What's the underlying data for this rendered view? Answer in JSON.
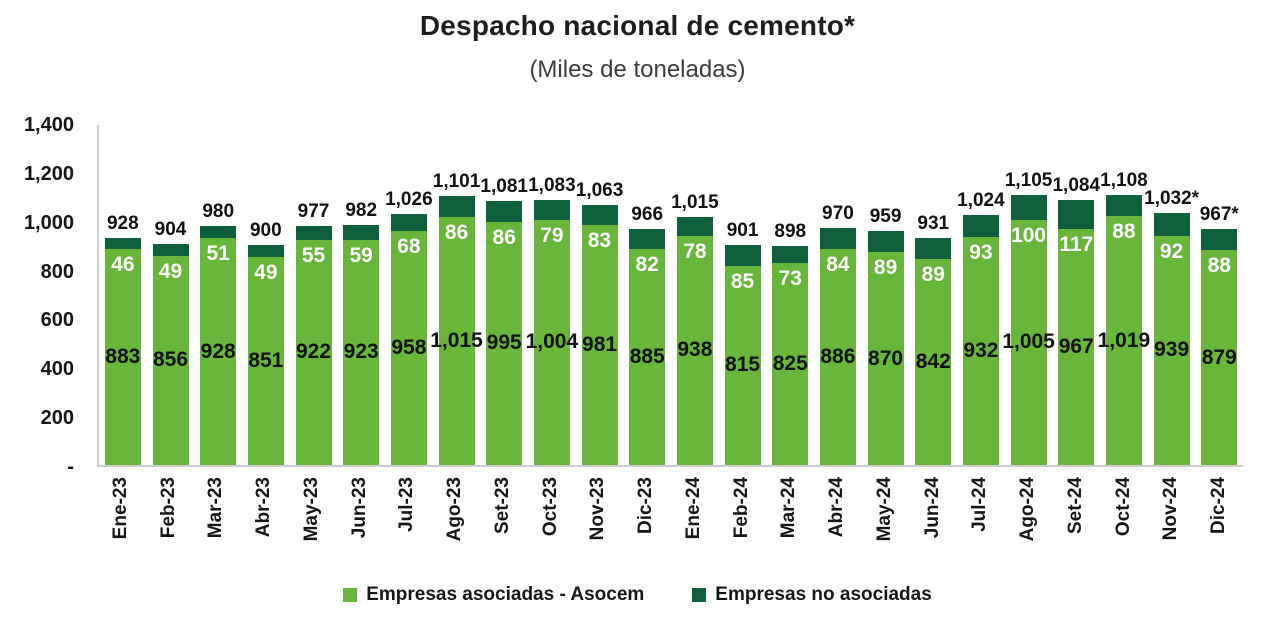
{
  "title": "Despacho nacional de cemento*",
  "subtitle": "(Miles de toneladas)",
  "legend": {
    "asociadas_label": "Empresas asociadas - Asocem",
    "no_asociadas_label": "Empresas no asociadas"
  },
  "colors": {
    "asociadas": "#68B63A",
    "no_asociadas": "#0E5F3C",
    "axis_line": "#CFCDD1",
    "label_white": "#FFFFFF",
    "label_black": "#111111"
  },
  "chart_data": {
    "type": "bar",
    "stacked": true,
    "title": "Despacho nacional de cemento*",
    "subtitle": "(Miles de toneladas)",
    "grid": false,
    "legend_position": "bottom",
    "ylim": [
      0,
      1400
    ],
    "y_ticks": [
      "1,400",
      "1,200",
      "1,000",
      "800",
      "600",
      "400",
      "200",
      "-"
    ],
    "categories": [
      "Ene-23",
      "Feb-23",
      "Mar-23",
      "Abr-23",
      "May-23",
      "Jun-23",
      "Jul-23",
      "Ago-23",
      "Set-23",
      "Oct-23",
      "Nov-23",
      "Dic-23",
      "Ene-24",
      "Feb-24",
      "Mar-24",
      "Abr-24",
      "May-24",
      "Jun-24",
      "Jul-24",
      "Ago-24",
      "Set-24",
      "Oct-24",
      "Nov-24",
      "Dic-24"
    ],
    "series": [
      {
        "name": "Empresas asociadas - Asocem",
        "color": "#68B63A",
        "values": [
          883,
          856,
          928,
          851,
          922,
          923,
          958,
          1015,
          995,
          1004,
          981,
          885,
          938,
          815,
          825,
          886,
          870,
          842,
          932,
          1005,
          967,
          1019,
          939,
          879
        ]
      },
      {
        "name": "Empresas no asociadas",
        "color": "#0E5F3C",
        "values": [
          46,
          49,
          51,
          49,
          55,
          59,
          68,
          86,
          86,
          79,
          83,
          82,
          78,
          85,
          73,
          84,
          89,
          89,
          93,
          100,
          117,
          88,
          92,
          88
        ]
      }
    ],
    "total_labels": [
      "928",
      "904",
      "980",
      "900",
      "977",
      "982",
      "1,026",
      "1,101",
      "1,081",
      "1,083",
      "1,063",
      "966",
      "1,015",
      "901",
      "898",
      "970",
      "959",
      "931",
      "1,024",
      "1,105",
      "1,084",
      "1,108",
      "1,032*",
      "967*"
    ]
  }
}
